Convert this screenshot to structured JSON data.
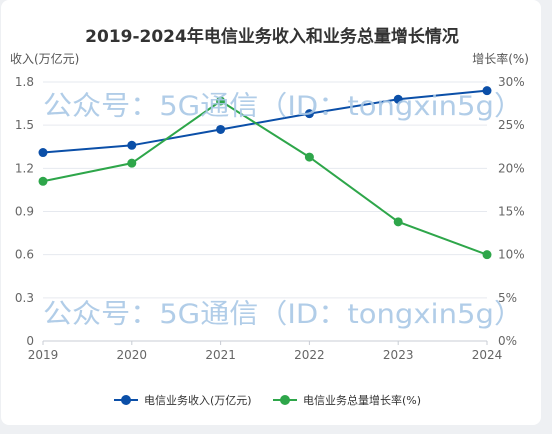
{
  "chart_data": {
    "type": "line",
    "title": "2019-2024年电信业务收入和业务总量增长情况",
    "x": [
      "2019",
      "2020",
      "2021",
      "2022",
      "2023",
      "2024"
    ],
    "y_left": {
      "label": "收入(万亿元)",
      "ticks": [
        "0",
        "0.3",
        "0.6",
        "0.9",
        "1.2",
        "1.5",
        "1.8"
      ],
      "ylim": [
        0,
        1.8
      ]
    },
    "y_right": {
      "label": "增长率(%)",
      "ticks": [
        "0%",
        "5%",
        "10%",
        "15%",
        "20%",
        "25%",
        "30%"
      ],
      "ylim": [
        0,
        30
      ]
    },
    "series": [
      {
        "name": "电信业务收入(万亿元)",
        "axis": "left",
        "color": "#0b4fa8",
        "values": [
          1.31,
          1.36,
          1.47,
          1.58,
          1.68,
          1.74
        ]
      },
      {
        "name": "电信业务总量增长率(%)",
        "axis": "right",
        "color": "#2ea64a",
        "values": [
          18.5,
          20.6,
          27.8,
          21.3,
          13.8,
          10.0
        ]
      }
    ],
    "grid": true,
    "legend_position": "bottom-center"
  },
  "watermark": {
    "text": "公众号：5G通信（ID：tongxin5g）",
    "color": "#a9c8e6"
  }
}
